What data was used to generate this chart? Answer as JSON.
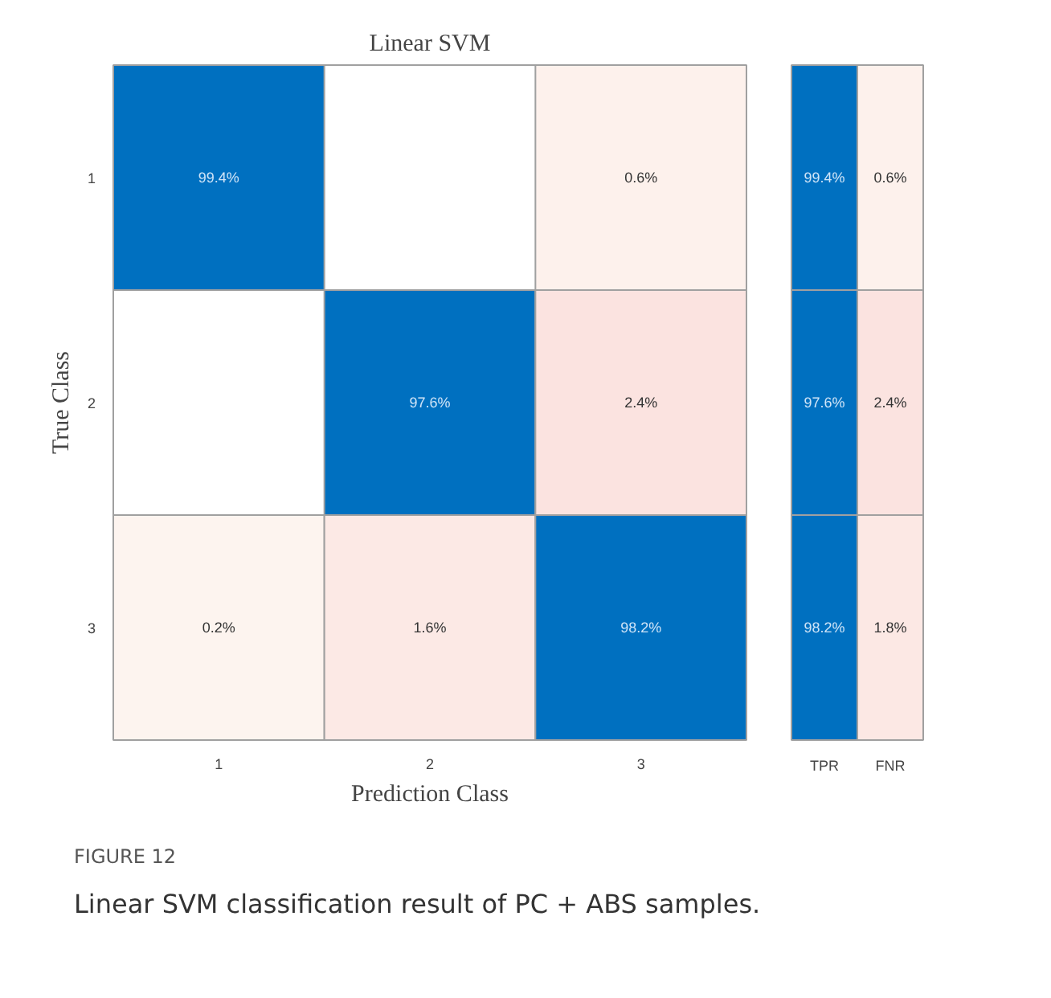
{
  "chart_data": [
    {
      "type": "heatmap",
      "title": "Linear SVM",
      "xlabel": "Prediction Class",
      "ylabel": "True Class",
      "categories": [
        "1",
        "2",
        "3"
      ],
      "y_categories": [
        "1",
        "2",
        "3"
      ],
      "cells": [
        [
          99.4,
          null,
          0.6
        ],
        [
          null,
          97.6,
          2.4
        ],
        [
          0.2,
          1.6,
          98.2
        ]
      ],
      "cell_labels": [
        [
          "99.4%",
          null,
          "0.6%"
        ],
        [
          null,
          "97.6%",
          "2.4%"
        ],
        [
          "0.2%",
          "1.6%",
          "98.2%"
        ]
      ],
      "annotations": [
        "FIGURE 12",
        "Linear SVM classification result of PC + ABS samples."
      ]
    },
    {
      "type": "heatmap",
      "categories": [
        "TPR",
        "FNR"
      ],
      "y_categories": [
        "1",
        "2",
        "3"
      ],
      "tick_labels": "x",
      "cells": [
        [
          99.4,
          0.6
        ],
        [
          97.6,
          2.4
        ],
        [
          98.2,
          1.8
        ]
      ],
      "cell_labels": [
        [
          "99.4%",
          "0.6%"
        ],
        [
          "97.6%",
          "2.4%"
        ],
        [
          "98.2%",
          "1.8%"
        ]
      ]
    }
  ]
}
